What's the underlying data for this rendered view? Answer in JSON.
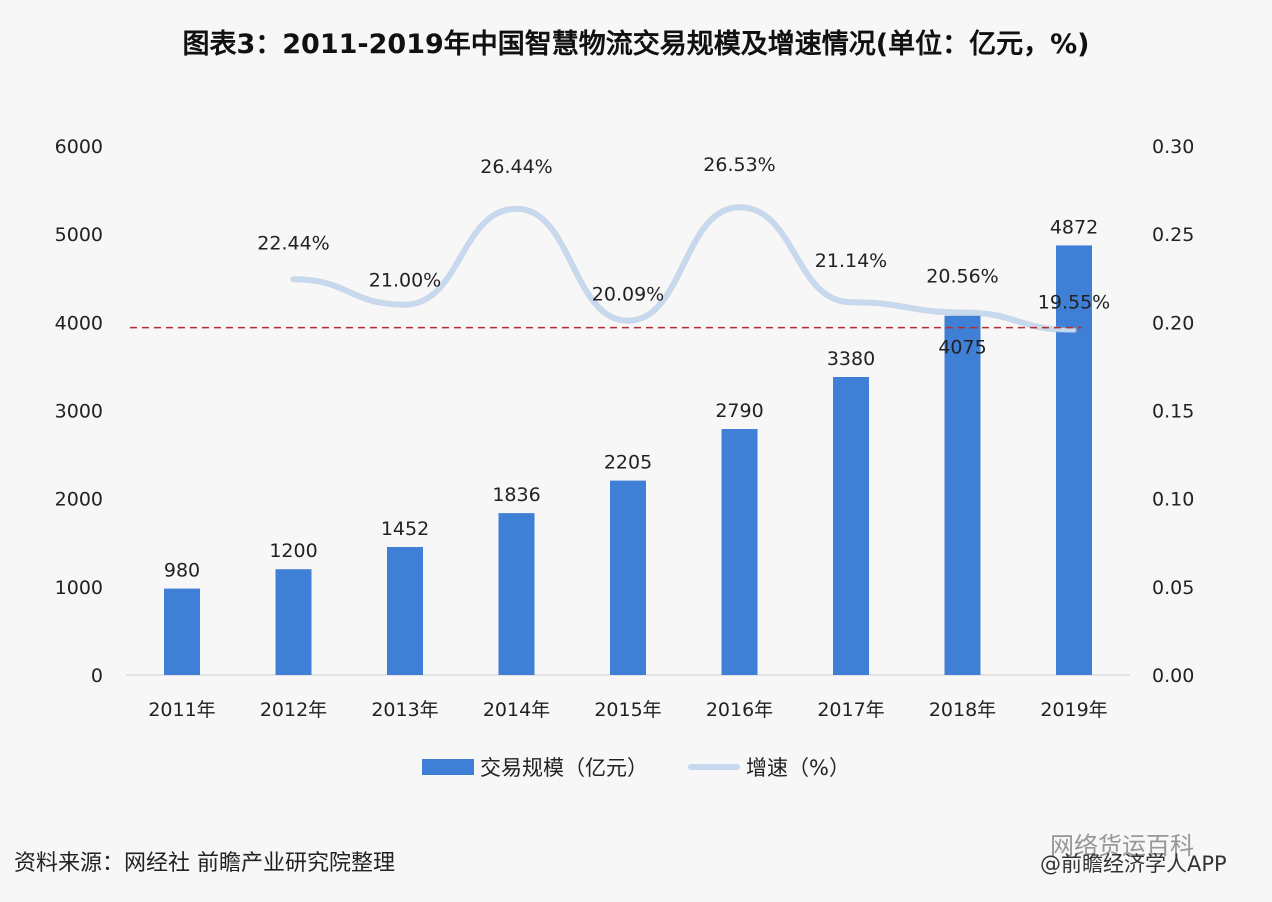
{
  "title": "图表3：2011-2019年中国智慧物流交易规模及增速情况(单位：亿元，%)",
  "source": "资料来源：网经社 前瞻产业研究院整理",
  "watermark": {
    "line1": "网络货运百科",
    "line2": "@前瞻经济学人APP"
  },
  "colors": {
    "bar": "#3f7fd6",
    "line": "#c6d9ee",
    "dashed_ref": "#b03030"
  },
  "chart_data": {
    "type": "bar+line",
    "title": "图表3：2011-2019年中国智慧物流交易规模及增速情况(单位：亿元，%)",
    "categories": [
      "2011年",
      "2012年",
      "2013年",
      "2014年",
      "2015年",
      "2016年",
      "2017年",
      "2018年",
      "2019年"
    ],
    "series": [
      {
        "name": "交易规模（亿元）",
        "type": "bar",
        "axis": "left",
        "values": [
          980,
          1200,
          1452,
          1836,
          2205,
          2790,
          3380,
          4075,
          4872
        ],
        "labels": [
          "980",
          "1200",
          "1452",
          "1836",
          "2205",
          "2790",
          "3380",
          "4075",
          "4872"
        ]
      },
      {
        "name": "增速（%）",
        "type": "line",
        "axis": "right",
        "values": [
          null,
          0.2244,
          0.21,
          0.2644,
          0.2009,
          0.2653,
          0.2114,
          0.2056,
          0.1955
        ],
        "labels": [
          "",
          "22.44%",
          "21.00%",
          "26.44%",
          "20.09%",
          "26.53%",
          "21.14%",
          "20.56%",
          "19.55%"
        ]
      }
    ],
    "left_axis": {
      "range": [
        0,
        6000
      ],
      "ticks": [
        "0",
        "1000",
        "2000",
        "3000",
        "4000",
        "5000",
        "6000"
      ]
    },
    "right_axis": {
      "range": [
        0,
        0.3
      ],
      "ticks": [
        "0.00",
        "0.05",
        "0.10",
        "0.15",
        "0.20",
        "0.25",
        "0.30"
      ]
    },
    "reference_line": {
      "axis": "right",
      "value": 0.197,
      "style": "dashed"
    },
    "grid": false,
    "legend": "bottom"
  }
}
